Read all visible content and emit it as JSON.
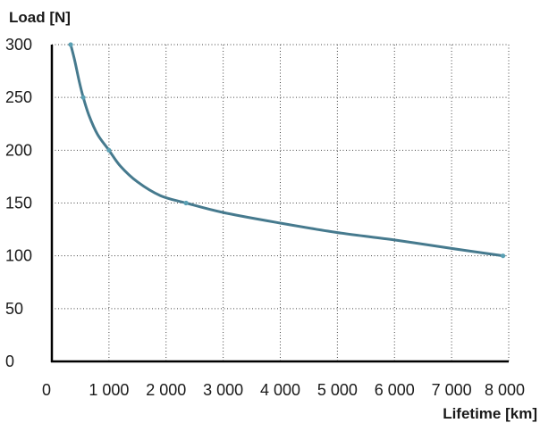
{
  "chart_data": {
    "type": "line",
    "xlabel": "Lifetime [km]",
    "ylabel": "Load [N]",
    "xlim": [
      0,
      8000
    ],
    "ylim": [
      0,
      300
    ],
    "x_ticks": [
      0,
      1000,
      2000,
      3000,
      4000,
      5000,
      6000,
      7000,
      8000
    ],
    "x_tick_labels": [
      "0",
      "1 000",
      "2 000",
      "3 000",
      "4 000",
      "5 000",
      "6 000",
      "7 000",
      "8 000"
    ],
    "y_ticks": [
      0,
      50,
      100,
      150,
      200,
      250,
      300
    ],
    "y_tick_labels": [
      "0",
      "50",
      "100",
      "150",
      "200",
      "250",
      "300"
    ],
    "grid": true,
    "series": [
      {
        "color": "#467a8e",
        "points": [
          {
            "x": 330,
            "y": 300
          },
          {
            "x": 400,
            "y": 285
          },
          {
            "x": 480,
            "y": 265
          },
          {
            "x": 550,
            "y": 250
          },
          {
            "x": 650,
            "y": 233
          },
          {
            "x": 800,
            "y": 215
          },
          {
            "x": 1000,
            "y": 200
          },
          {
            "x": 1200,
            "y": 185
          },
          {
            "x": 1500,
            "y": 170
          },
          {
            "x": 1900,
            "y": 157
          },
          {
            "x": 2350,
            "y": 150
          },
          {
            "x": 3000,
            "y": 141
          },
          {
            "x": 4000,
            "y": 131
          },
          {
            "x": 5000,
            "y": 122
          },
          {
            "x": 6000,
            "y": 115
          },
          {
            "x": 7000,
            "y": 107
          },
          {
            "x": 7900,
            "y": 100
          }
        ],
        "markers": [
          {
            "x": 330,
            "y": 300
          },
          {
            "x": 550,
            "y": 250
          },
          {
            "x": 1000,
            "y": 200
          },
          {
            "x": 2350,
            "y": 150
          },
          {
            "x": 7900,
            "y": 100
          }
        ]
      }
    ]
  }
}
